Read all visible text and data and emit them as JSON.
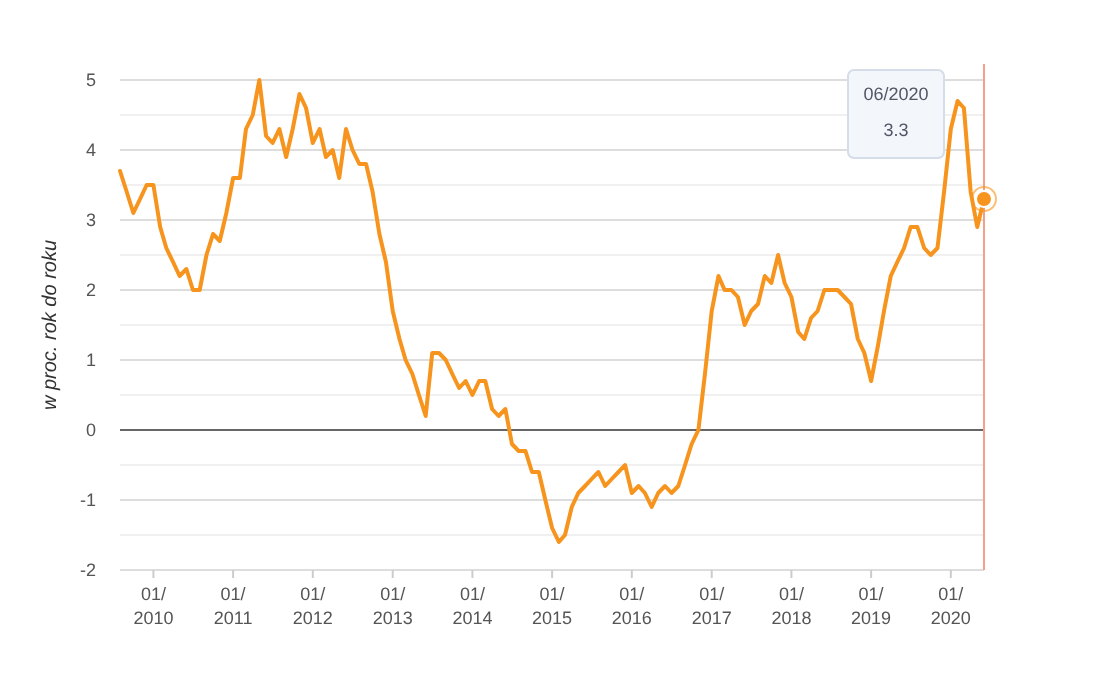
{
  "chart_data": {
    "type": "line",
    "ylabel": "w proc. rok do roku",
    "x": [
      "2009-08",
      "2009-09",
      "2009-10",
      "2009-11",
      "2009-12",
      "2010-01",
      "2010-02",
      "2010-03",
      "2010-04",
      "2010-05",
      "2010-06",
      "2010-07",
      "2010-08",
      "2010-09",
      "2010-10",
      "2010-11",
      "2010-12",
      "2011-01",
      "2011-02",
      "2011-03",
      "2011-04",
      "2011-05",
      "2011-06",
      "2011-07",
      "2011-08",
      "2011-09",
      "2011-10",
      "2011-11",
      "2011-12",
      "2012-01",
      "2012-02",
      "2012-03",
      "2012-04",
      "2012-05",
      "2012-06",
      "2012-07",
      "2012-08",
      "2012-09",
      "2012-10",
      "2012-11",
      "2012-12",
      "2013-01",
      "2013-02",
      "2013-03",
      "2013-04",
      "2013-05",
      "2013-06",
      "2013-07",
      "2013-08",
      "2013-09",
      "2013-10",
      "2013-11",
      "2013-12",
      "2014-01",
      "2014-02",
      "2014-03",
      "2014-04",
      "2014-05",
      "2014-06",
      "2014-07",
      "2014-08",
      "2014-09",
      "2014-10",
      "2014-11",
      "2014-12",
      "2015-01",
      "2015-02",
      "2015-03",
      "2015-04",
      "2015-05",
      "2015-06",
      "2015-07",
      "2015-08",
      "2015-09",
      "2015-10",
      "2015-11",
      "2015-12",
      "2016-01",
      "2016-02",
      "2016-03",
      "2016-04",
      "2016-05",
      "2016-06",
      "2016-07",
      "2016-08",
      "2016-09",
      "2016-10",
      "2016-11",
      "2016-12",
      "2017-01",
      "2017-02",
      "2017-03",
      "2017-04",
      "2017-05",
      "2017-06",
      "2017-07",
      "2017-08",
      "2017-09",
      "2017-10",
      "2017-11",
      "2017-12",
      "2018-01",
      "2018-02",
      "2018-03",
      "2018-04",
      "2018-05",
      "2018-06",
      "2018-07",
      "2018-08",
      "2018-09",
      "2018-10",
      "2018-11",
      "2018-12",
      "2019-01",
      "2019-02",
      "2019-03",
      "2019-04",
      "2019-05",
      "2019-06",
      "2019-07",
      "2019-08",
      "2019-09",
      "2019-10",
      "2019-11",
      "2019-12",
      "2020-01",
      "2020-02",
      "2020-03",
      "2020-04",
      "2020-05",
      "2020-06"
    ],
    "series": [
      {
        "color": "#f7941d",
        "values": [
          3.7,
          3.4,
          3.1,
          3.3,
          3.5,
          3.5,
          2.9,
          2.6,
          2.4,
          2.2,
          2.3,
          2.0,
          2.0,
          2.5,
          2.8,
          2.7,
          3.1,
          3.6,
          3.6,
          4.3,
          4.5,
          5.0,
          4.2,
          4.1,
          4.3,
          3.9,
          4.3,
          4.8,
          4.6,
          4.1,
          4.3,
          3.9,
          4.0,
          3.6,
          4.3,
          4.0,
          3.8,
          3.8,
          3.4,
          2.8,
          2.4,
          1.7,
          1.3,
          1.0,
          0.8,
          0.5,
          0.2,
          1.1,
          1.1,
          1.0,
          0.8,
          0.6,
          0.7,
          0.5,
          0.7,
          0.7,
          0.3,
          0.2,
          0.3,
          -0.2,
          -0.3,
          -0.3,
          -0.6,
          -0.6,
          -1.0,
          -1.4,
          -1.6,
          -1.5,
          -1.1,
          -0.9,
          -0.8,
          -0.7,
          -0.6,
          -0.8,
          -0.7,
          -0.6,
          -0.5,
          -0.9,
          -0.8,
          -0.9,
          -1.1,
          -0.9,
          -0.8,
          -0.9,
          -0.8,
          -0.5,
          -0.2,
          0.0,
          0.8,
          1.7,
          2.2,
          2.0,
          2.0,
          1.9,
          1.5,
          1.7,
          1.8,
          2.2,
          2.1,
          2.5,
          2.1,
          1.9,
          1.4,
          1.3,
          1.6,
          1.7,
          2.0,
          2.0,
          2.0,
          1.9,
          1.8,
          1.3,
          1.1,
          0.7,
          1.2,
          1.7,
          2.2,
          2.4,
          2.6,
          2.9,
          2.9,
          2.6,
          2.5,
          2.6,
          3.4,
          4.3,
          4.7,
          4.6,
          3.4,
          2.9,
          3.3
        ]
      }
    ],
    "xlim": [
      "2009-08",
      "2020-06"
    ],
    "xticks": [
      {
        "value": "2010-01",
        "label": "01/\n2010"
      },
      {
        "value": "2011-01",
        "label": "01/\n2011"
      },
      {
        "value": "2012-01",
        "label": "01/\n2012"
      },
      {
        "value": "2013-01",
        "label": "01/\n2013"
      },
      {
        "value": "2014-01",
        "label": "01/\n2014"
      },
      {
        "value": "2015-01",
        "label": "01/\n2015"
      },
      {
        "value": "2016-01",
        "label": "01/\n2016"
      },
      {
        "value": "2017-01",
        "label": "01/\n2017"
      },
      {
        "value": "2018-01",
        "label": "01/\n2018"
      },
      {
        "value": "2019-01",
        "label": "01/\n2019"
      },
      {
        "value": "2020-01",
        "label": "01/\n2020"
      }
    ],
    "ylim": [
      -2,
      5
    ],
    "yticks": [
      -2,
      {
        "value": -1.5,
        "label": null
      },
      -1,
      {
        "value": -0.5,
        "label": null
      },
      0,
      {
        "value": 0.5,
        "label": null
      },
      1,
      {
        "value": 1.5,
        "label": null
      },
      2,
      {
        "value": 2.5,
        "label": null
      },
      3,
      {
        "value": 3.5,
        "label": null
      },
      4,
      {
        "value": 4.5,
        "label": null
      },
      5
    ],
    "grid": "y",
    "ref_lines": [
      {
        "axis": "y",
        "value": 0,
        "color": "#666666"
      },
      {
        "axis": "x",
        "value": "2020-06",
        "color": "#f2a08a"
      }
    ],
    "annotations": [
      "06/2020\n3.3"
    ],
    "marker": "none",
    "line_style": "solid"
  }
}
